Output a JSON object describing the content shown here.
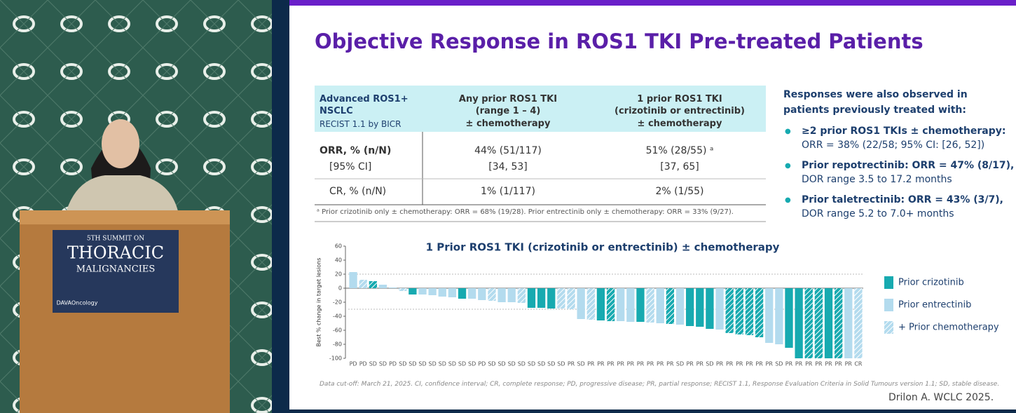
{
  "podium": {
    "line1": "5TH SUMMIT ON",
    "line2": "THORACIC",
    "line3": "MALIGNANCIES",
    "logo": "DAVAOncology"
  },
  "slide": {
    "title": "Objective Response in ROS1 TKI Pre-treated Patients",
    "table": {
      "header": [
        [
          "Advanced ROS1+",
          "NSCLC",
          "RECIST 1.1 by BICR"
        ],
        [
          "Any prior ROS1 TKI",
          "(range 1 – 4)",
          "± chemotherapy"
        ],
        [
          "1 prior ROS1 TKI",
          "(crizotinib or entrectinib)",
          "± chemotherapy"
        ]
      ],
      "rows": [
        [
          [
            "ORR, % (n/N)",
            "[95% CI]"
          ],
          [
            "44% (51/117)",
            "[34, 53]"
          ],
          [
            "51% (28/55) ᵃ",
            "[37, 65]"
          ]
        ],
        [
          [
            "CR, % (n/N)"
          ],
          [
            "1% (1/117)"
          ],
          [
            "2% (1/55)"
          ]
        ]
      ]
    },
    "footnote": "ᵃ Prior crizotinib only ± chemotherapy: ORR = 68% (19/28). Prior entrectinib only ± chemotherapy: ORR = 33% (9/27).",
    "side": {
      "heading": [
        "Responses were also observed in",
        "patients previously treated with:"
      ],
      "bullets": [
        [
          "≥2 prior ROS1 TKIs ± chemotherapy:",
          "ORR = 38% (22/58; 95% CI: [26, 52])"
        ],
        [
          "Prior repotrectinib: ORR = 47% (8/17),",
          "DOR range 3.5 to 17.2 months"
        ],
        [
          "Prior taletrectinib: ORR = 43% (3/7),",
          "DOR range 5.2 to 7.0+ months"
        ]
      ]
    },
    "data_cutoff": "Data cut-off: March 21, 2025. CI, confidence interval; CR, complete response; PD, progressive disease; PR, partial response; RECIST 1.1, Response Evaluation Criteria in Solid Tumours version 1.1; SD, stable disease.",
    "citation": "Drilon A. WCLC 2025."
  },
  "chart_data": {
    "type": "waterfall",
    "title": "1 Prior ROS1 TKI (crizotinib or entrectinib) ± chemotherapy",
    "y_label": "Best % change in target lesions",
    "categories": [
      "PD",
      "PD",
      "SD",
      "SD",
      "PD",
      "SD",
      "SD",
      "SD",
      "SD",
      "SD",
      "SD",
      "SD",
      "SD",
      "PD",
      "SD",
      "SD",
      "SD",
      "SD",
      "SD",
      "SD",
      "SD",
      "SD",
      "PR",
      "SD",
      "PR",
      "PR",
      "PR",
      "PR",
      "PR",
      "PR",
      "PR",
      "PR",
      "PR",
      "SD",
      "PR",
      "PR",
      "SD",
      "PR",
      "PR",
      "PR",
      "PR",
      "PR",
      "PR",
      "SD",
      "PR",
      "PR",
      "PR",
      "PR",
      "PR",
      "PR",
      "PR",
      "CR"
    ],
    "series": [
      {
        "name": "Prior crizotinib",
        "color": "#17aab0",
        "values": [
          null,
          null,
          10,
          null,
          null,
          null,
          -9,
          null,
          null,
          null,
          null,
          -15,
          null,
          null,
          null,
          null,
          null,
          null,
          -28,
          -28,
          -29,
          null,
          null,
          null,
          null,
          -46,
          -47,
          null,
          null,
          -48,
          null,
          null,
          -51,
          null,
          -54,
          -55,
          -58,
          null,
          -64,
          -66,
          -67,
          -70,
          null,
          null,
          -85,
          -100,
          -100,
          -100,
          -100,
          -100,
          null,
          null
        ]
      },
      {
        "name": "Prior entrectinib",
        "color": "#b3dbee",
        "values": [
          23,
          12,
          null,
          5,
          1,
          -4,
          null,
          -9,
          -10,
          -12,
          -13,
          null,
          -15,
          -17,
          -18,
          -20,
          -20,
          -21,
          null,
          null,
          null,
          -29,
          -30,
          -44,
          -45,
          null,
          null,
          -47,
          -48,
          null,
          -49,
          -50,
          null,
          -52,
          null,
          null,
          null,
          -59,
          null,
          null,
          null,
          null,
          -78,
          -80,
          null,
          null,
          null,
          null,
          null,
          null,
          -100,
          -100
        ]
      }
    ],
    "hatch_label": "+ Prior chemotherapy",
    "hatched": [
      false,
      true,
      true,
      false,
      false,
      true,
      false,
      false,
      false,
      false,
      false,
      false,
      false,
      false,
      true,
      false,
      false,
      true,
      false,
      false,
      false,
      true,
      true,
      false,
      true,
      false,
      true,
      false,
      false,
      false,
      true,
      false,
      true,
      false,
      false,
      false,
      false,
      false,
      true,
      true,
      true,
      true,
      false,
      false,
      false,
      false,
      true,
      true,
      false,
      true,
      false,
      true
    ],
    "ylim": [
      -100,
      60
    ],
    "yticks": [
      60,
      40,
      20,
      0,
      -20,
      -40,
      -60,
      -80,
      -100
    ],
    "reference_lines": [
      20,
      -30
    ]
  }
}
